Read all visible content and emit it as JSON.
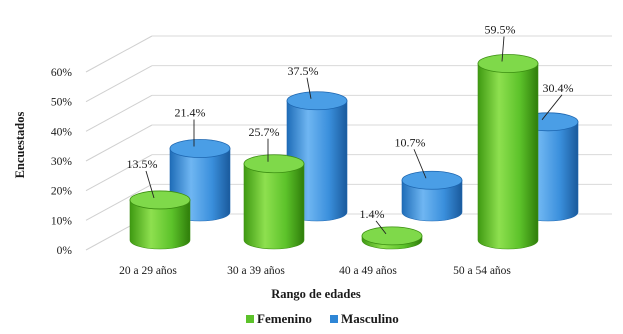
{
  "chart_data": {
    "type": "bar",
    "style": "3d-cylinder",
    "title": "",
    "xlabel": "Rango de edades",
    "ylabel": "Encuestados",
    "ylim": [
      0,
      60
    ],
    "yticks": [
      "0%",
      "10%",
      "20%",
      "30%",
      "40%",
      "50%",
      "60%"
    ],
    "ytick_values": [
      0,
      10,
      20,
      30,
      40,
      50,
      60
    ],
    "grid": true,
    "legend_position": "bottom",
    "categories": [
      "20 a 29 años",
      "30 a 39 años",
      "40 a 49 años",
      "50 a 54 años"
    ],
    "series": [
      {
        "name": "Femenino",
        "color": "#5cc22a",
        "values": [
          13.5,
          25.7,
          1.4,
          59.5
        ],
        "labels": [
          "13.5%",
          "25.7%",
          "1.4%",
          "59.5%"
        ]
      },
      {
        "name": "Masculino",
        "color": "#2e86d6",
        "values": [
          21.4,
          37.5,
          10.7,
          30.4
        ],
        "labels": [
          "21.4%",
          "37.5%",
          "10.7%",
          "30.4%"
        ]
      }
    ]
  }
}
